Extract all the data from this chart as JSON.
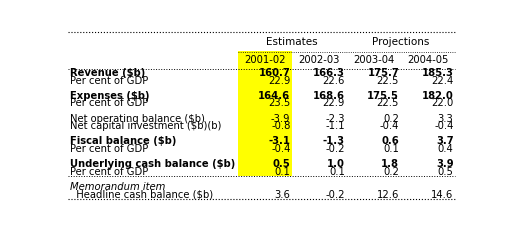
{
  "col_headers_group1": "Estimates",
  "col_headers_group2": "Projections",
  "col_headers": [
    "2001-02",
    "2002-03",
    "2003-04",
    "2004-05"
  ],
  "highlight_color": "#FFFF00",
  "rows": [
    {
      "label": "Revenue ($b)",
      "bold": true,
      "italic": false,
      "spacer": false,
      "separator": false,
      "values": [
        "160.7",
        "166.3",
        "175.7",
        "185.3"
      ]
    },
    {
      "label": "Per cent of GDP",
      "bold": false,
      "italic": false,
      "spacer": false,
      "separator": false,
      "values": [
        "22.9",
        "22.6",
        "22.5",
        "22.4"
      ]
    },
    {
      "label": "",
      "bold": false,
      "italic": false,
      "spacer": true,
      "separator": false,
      "values": [
        "",
        "",
        "",
        ""
      ]
    },
    {
      "label": "Expenses ($b)",
      "bold": true,
      "italic": false,
      "spacer": false,
      "separator": false,
      "values": [
        "164.6",
        "168.6",
        "175.5",
        "182.0"
      ]
    },
    {
      "label": "Per cent of GDP",
      "bold": false,
      "italic": false,
      "spacer": false,
      "separator": false,
      "values": [
        "23.5",
        "22.9",
        "22.5",
        "22.0"
      ]
    },
    {
      "label": "",
      "bold": false,
      "italic": false,
      "spacer": true,
      "separator": false,
      "values": [
        "",
        "",
        "",
        ""
      ]
    },
    {
      "label": "Net operating balance ($b)",
      "bold": false,
      "italic": false,
      "spacer": false,
      "separator": false,
      "values": [
        "-3.9",
        "-2.3",
        "0.2",
        "3.3"
      ]
    },
    {
      "label": "Net capital investment ($b)(b)",
      "bold": false,
      "italic": false,
      "spacer": false,
      "separator": false,
      "values": [
        "-0.8",
        "-1.1",
        "-0.4",
        "-0.4"
      ]
    },
    {
      "label": "",
      "bold": false,
      "italic": false,
      "spacer": true,
      "separator": false,
      "values": [
        "",
        "",
        "",
        ""
      ]
    },
    {
      "label": "Fiscal balance ($b)",
      "bold": true,
      "italic": false,
      "spacer": false,
      "separator": false,
      "values": [
        "-3.1",
        "-1.3",
        "0.6",
        "3.7"
      ]
    },
    {
      "label": "Per cent of GDP",
      "bold": false,
      "italic": false,
      "spacer": false,
      "separator": false,
      "values": [
        "-0.4",
        "-0.2",
        "0.1",
        "0.4"
      ]
    },
    {
      "label": "",
      "bold": false,
      "italic": false,
      "spacer": true,
      "separator": false,
      "values": [
        "",
        "",
        "",
        ""
      ]
    },
    {
      "label": "Underlying cash balance ($b)",
      "bold": true,
      "italic": false,
      "spacer": false,
      "separator": false,
      "values": [
        "0.5",
        "1.0",
        "1.8",
        "3.9"
      ]
    },
    {
      "label": "Per cent of GDP",
      "bold": false,
      "italic": false,
      "spacer": false,
      "separator": false,
      "values": [
        "0.1",
        "0.1",
        "0.2",
        "0.5"
      ]
    },
    {
      "label": "---",
      "bold": false,
      "italic": false,
      "spacer": false,
      "separator": true,
      "values": [
        "",
        "",
        "",
        ""
      ]
    },
    {
      "label": "Memorandum item",
      "bold": false,
      "italic": true,
      "spacer": false,
      "separator": false,
      "values": [
        "",
        "",
        "",
        ""
      ]
    },
    {
      "label": "  Headline cash balance ($b)",
      "bold": false,
      "italic": false,
      "spacer": false,
      "separator": false,
      "values": [
        "3.6",
        "-0.2",
        "12.6",
        "14.6"
      ]
    }
  ],
  "bg_color": "#FFFFFF",
  "font_size": 7.2,
  "header_font_size": 7.5
}
